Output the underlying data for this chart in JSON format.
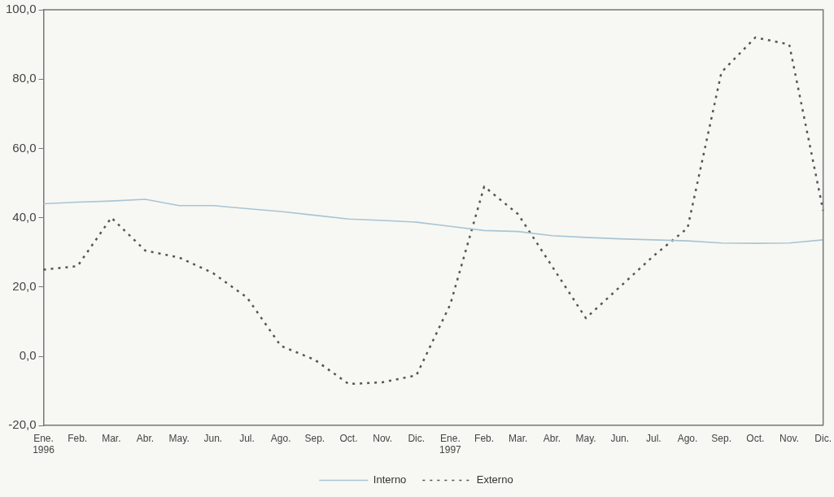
{
  "chart_data": {
    "type": "line",
    "categories": [
      "Ene.\n1996",
      "Feb.",
      "Mar.",
      "Abr.",
      "May.",
      "Jun.",
      "Jul.",
      "Ago.",
      "Sep.",
      "Oct.",
      "Nov.",
      "Dic.",
      "Ene.\n1997",
      "Feb.",
      "Mar.",
      "Abr.",
      "May.",
      "Jun.",
      "Jul.",
      "Ago.",
      "Sep.",
      "Oct.",
      "Nov.",
      "Dic."
    ],
    "series": [
      {
        "name": "Interno",
        "color": "#a9c4d4",
        "line_style": "solid",
        "values": [
          44,
          44.5,
          44.8,
          45.3,
          43.5,
          43.5,
          42.6,
          41.8,
          40.7,
          39.6,
          39.2,
          38.7,
          37.5,
          36.3,
          36,
          34.8,
          34.3,
          33.9,
          33.6,
          33.3,
          32.7,
          32.6,
          32.7,
          33.6
        ]
      },
      {
        "name": "Externo",
        "color": "#555555",
        "line_style": "dotted",
        "values": [
          25,
          26,
          40,
          30.5,
          28.5,
          24,
          17,
          3,
          -1,
          -8,
          -7.5,
          -5.5,
          15,
          49,
          41,
          26,
          11,
          20,
          29,
          37,
          82,
          92,
          90,
          42
        ]
      }
    ],
    "ylim": [
      -20,
      100
    ],
    "yticks": [
      {
        "value": -20,
        "label": "-20,0"
      },
      {
        "value": 0,
        "label": "0,0"
      },
      {
        "value": 20,
        "label": "20,0"
      },
      {
        "value": 40,
        "label": "40,0"
      },
      {
        "value": 60,
        "label": "60,0"
      },
      {
        "value": 80,
        "label": "80,0"
      },
      {
        "value": 100,
        "label": "100,0"
      }
    ],
    "grid": false,
    "legend": "bottom",
    "marker": "none"
  }
}
